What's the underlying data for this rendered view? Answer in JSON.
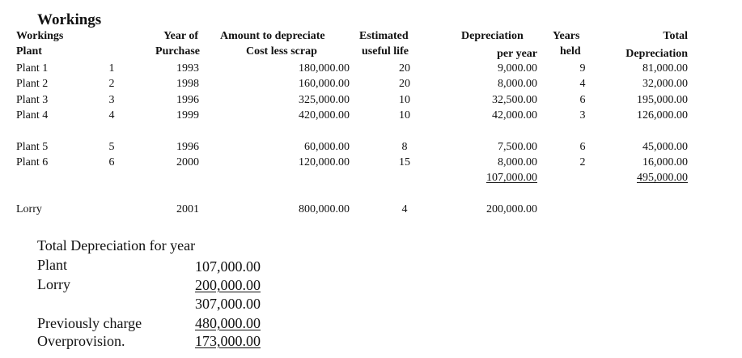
{
  "title": "Workings",
  "headers": {
    "workings": "Workings",
    "plant": "Plant",
    "year_of": "Year of",
    "purchase": "Purchase",
    "amount_line1": "Amount to depreciate",
    "amount_line2": "Cost less scrap",
    "estimated": "Estimated",
    "useful_life": "useful life",
    "depreciation": "Depreciation",
    "per_year": "per year",
    "years": "Years",
    "held": "held",
    "total": "Total",
    "total_depreciation": "Depreciation"
  },
  "rows": [
    {
      "name": "Plant 1",
      "num": "1",
      "year": "1993",
      "amount": "180,000.00",
      "life": "20",
      "per_year": "9,000.00",
      "held": "9",
      "total": "81,000.00"
    },
    {
      "name": "Plant 2",
      "num": "2",
      "year": "1998",
      "amount": "160,000.00",
      "life": "20",
      "per_year": "8,000.00",
      "held": "4",
      "total": "32,000.00"
    },
    {
      "name": "Plant 3",
      "num": "3",
      "year": "1996",
      "amount": "325,000.00",
      "life": "10",
      "per_year": "32,500.00",
      "held": "6",
      "total": "195,000.00"
    },
    {
      "name": "Plant 4",
      "num": "4",
      "year": "1999",
      "amount": "420,000.00",
      "life": "10",
      "per_year": "42,000.00",
      "held": "3",
      "total": "126,000.00"
    },
    {
      "name": "Plant 5",
      "num": "5",
      "year": "1996",
      "amount": "60,000.00",
      "life": "8",
      "per_year": "7,500.00",
      "held": "6",
      "total": "45,000.00"
    },
    {
      "name": "Plant 6",
      "num": "6",
      "year": "2000",
      "amount": "120,000.00",
      "life": "15",
      "per_year": "8,000.00",
      "held": "2",
      "total": "16,000.00"
    }
  ],
  "subtotals": {
    "per_year_total": "107,000.00",
    "total_total": "495,000.00"
  },
  "lorry": {
    "name": "Lorry",
    "year": "2001",
    "amount": "800,000.00",
    "life": "4",
    "per_year": "200,000.00"
  },
  "summary": {
    "heading": "Total Depreciation for year",
    "plant_label": "Plant",
    "plant_value": "107,000.00",
    "lorry_label": "Lorry",
    "lorry_value": "200,000.00",
    "sum_value": "307,000.00",
    "prev_label": "Previously charge",
    "prev_value": "480,000.00",
    "over_label": "Overprovision.",
    "over_value": "173,000.00"
  }
}
